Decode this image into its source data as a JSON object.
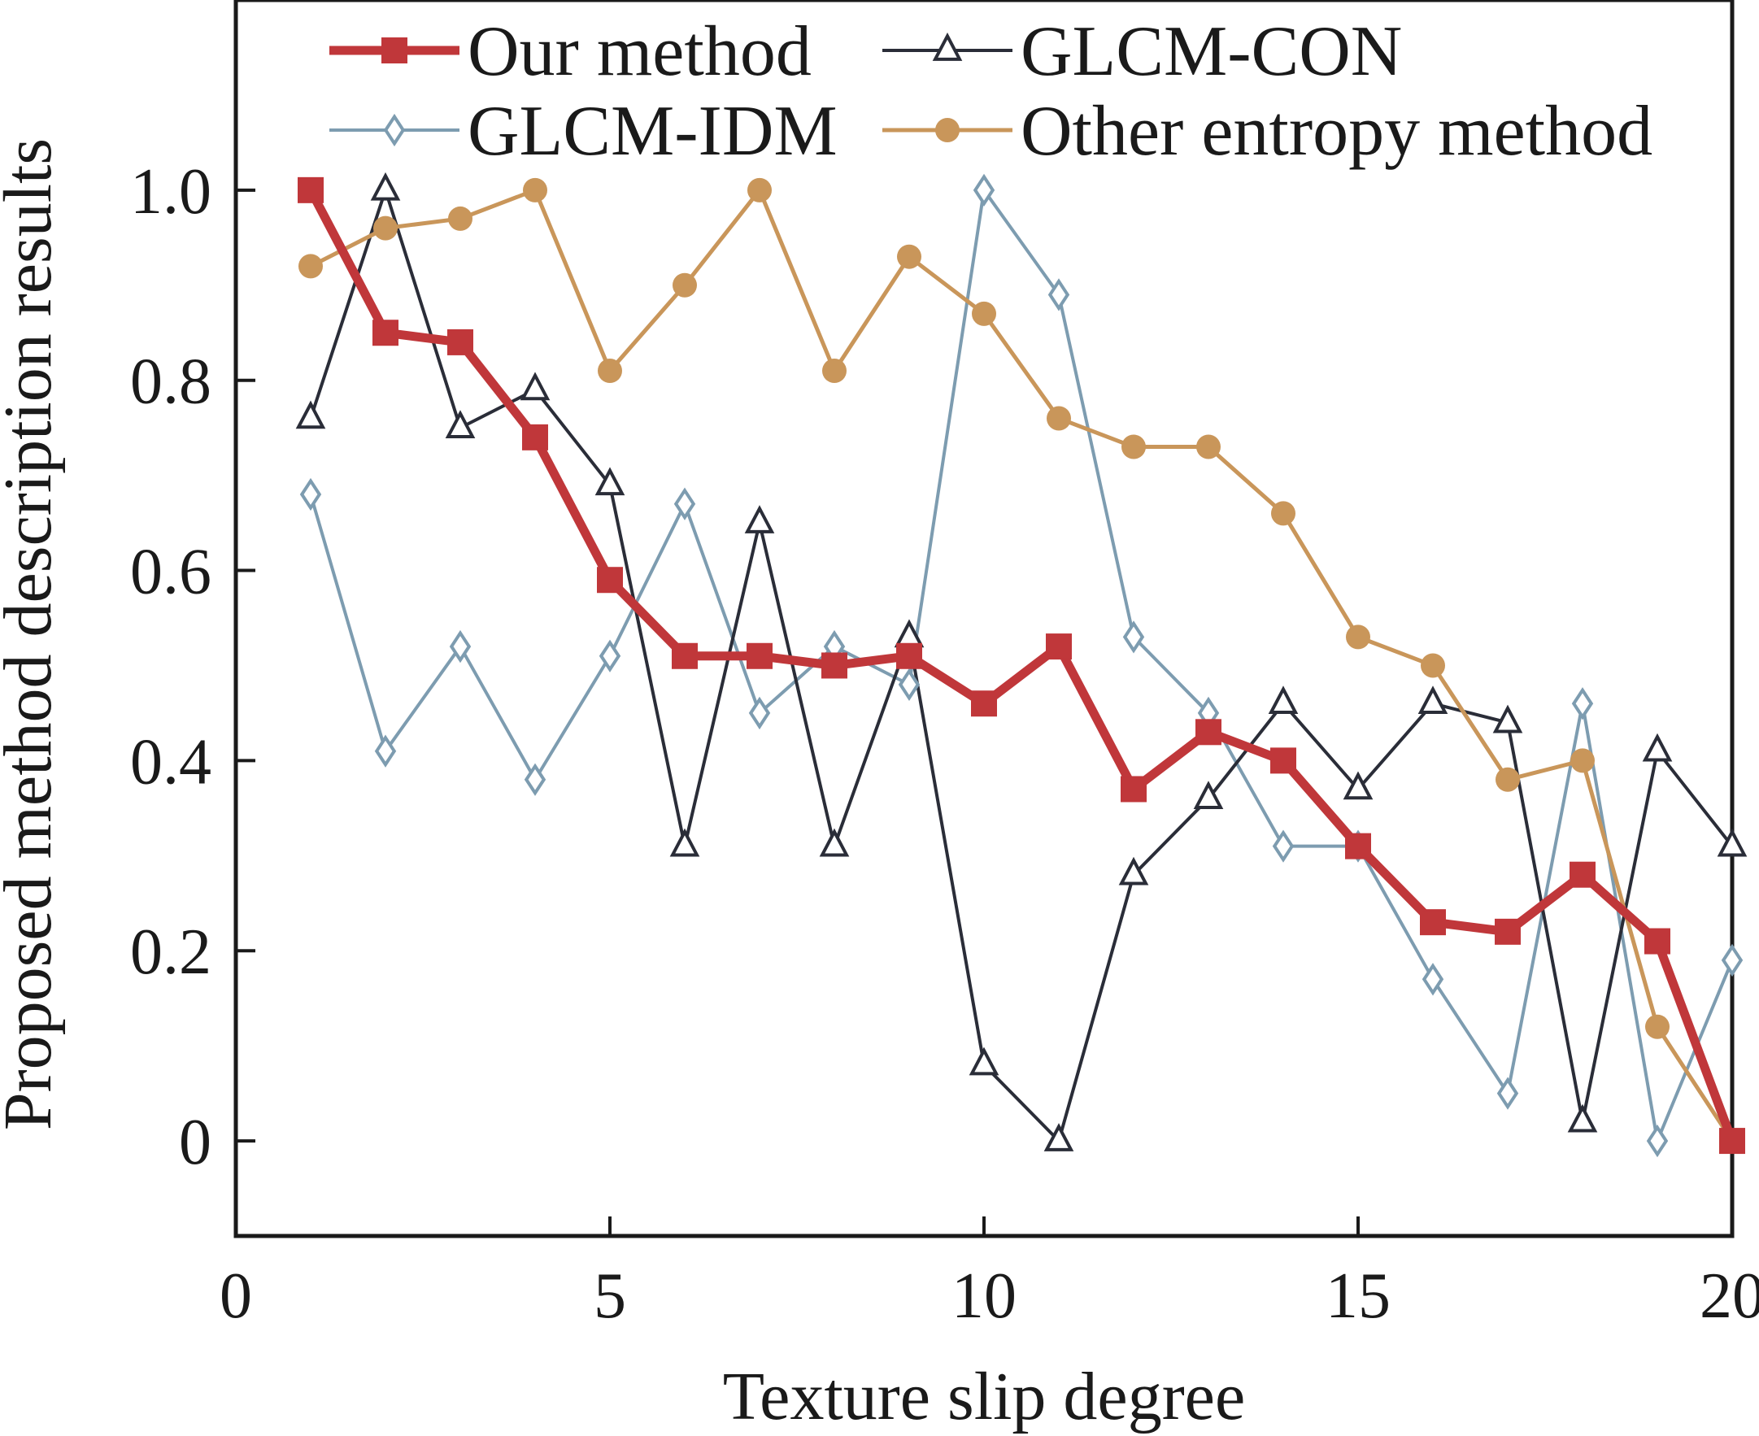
{
  "chart_data": {
    "type": "line",
    "title": "",
    "xlabel": "Texture slip degree",
    "ylabel": "Proposed method description results",
    "xlim": [
      0,
      20
    ],
    "ylim": [
      -0.1,
      1.2
    ],
    "x_ticks": [
      0,
      5,
      10,
      15,
      20
    ],
    "x_tick_labels": [
      "0",
      "5",
      "10",
      "15",
      "20"
    ],
    "y_ticks": [
      0,
      0.2,
      0.4,
      0.6,
      0.8,
      1.0
    ],
    "y_tick_labels": [
      "0",
      "0.2",
      "0.4",
      "0.6",
      "0.8",
      "1.0"
    ],
    "grid": false,
    "legend_position": "top",
    "x": [
      1,
      2,
      3,
      4,
      5,
      6,
      7,
      8,
      9,
      10,
      11,
      12,
      13,
      14,
      15,
      16,
      17,
      18,
      19,
      20
    ],
    "series": [
      {
        "name": "Our method",
        "marker": "square",
        "color": "#c0373a",
        "values": [
          1.0,
          0.85,
          0.84,
          0.74,
          0.59,
          0.51,
          0.51,
          0.5,
          0.51,
          0.46,
          0.52,
          0.37,
          0.43,
          0.4,
          0.31,
          0.23,
          0.22,
          0.28,
          0.21,
          0.0
        ]
      },
      {
        "name": "GLCM-CON",
        "marker": "triangle",
        "color": "#2a2d38",
        "values": [
          0.76,
          1.0,
          0.75,
          0.79,
          0.69,
          0.31,
          0.65,
          0.31,
          0.53,
          0.08,
          0.0,
          0.28,
          0.36,
          0.46,
          0.37,
          0.46,
          0.44,
          0.02,
          0.41,
          0.31
        ]
      },
      {
        "name": "GLCM-IDM",
        "marker": "diamond",
        "color": "#7d9cb0",
        "values": [
          0.68,
          0.41,
          0.52,
          0.38,
          0.51,
          0.67,
          0.45,
          0.52,
          0.48,
          1.0,
          0.89,
          0.53,
          0.45,
          0.31,
          0.31,
          0.17,
          0.05,
          0.46,
          0.0,
          0.19
        ]
      },
      {
        "name": "Other entropy method",
        "marker": "circle",
        "color": "#c9965a",
        "values": [
          0.92,
          0.96,
          0.97,
          1.0,
          0.81,
          0.9,
          1.0,
          0.81,
          0.93,
          0.87,
          0.76,
          0.73,
          0.73,
          0.66,
          0.53,
          0.5,
          0.38,
          0.4,
          0.12,
          0.0
        ]
      }
    ]
  }
}
